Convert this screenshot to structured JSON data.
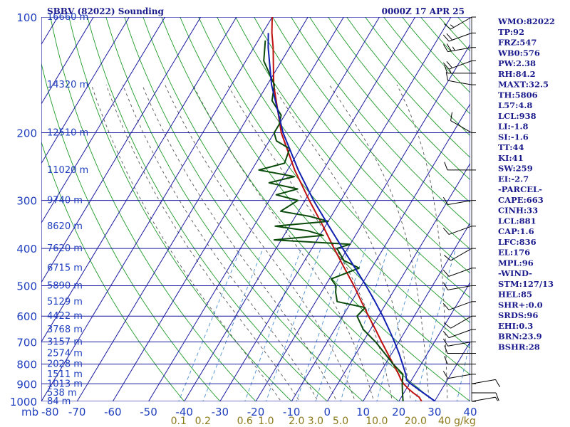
{
  "header": {
    "title": "SBBV (82022) Sounding",
    "time": "0000Z 17 APR 25"
  },
  "colors": {
    "grid": "#1a1aa0",
    "dry_adiabat": "#1f9a2a",
    "moist_adiabat": "#555555",
    "mixing_ratio": "#4a8fd0",
    "temperature": "#c01010",
    "dewpoint": "#0a4a0a",
    "parcel": "#1020b0",
    "labels": "#1f3fbf",
    "mixing_label": "#8c7a1a"
  },
  "chart_data": {
    "type": "line",
    "chart_kind": "skew-T log-P sounding",
    "y_scale": "log",
    "ylim": [
      1000,
      100
    ],
    "xlim": [
      -80,
      40
    ],
    "y_ticks": [
      100,
      200,
      300,
      400,
      500,
      600,
      700,
      800,
      900,
      1000
    ],
    "y_unit_label": "mb",
    "x_ticks": [
      -80,
      -70,
      -60,
      -50,
      -40,
      -30,
      -20,
      -10,
      0,
      10,
      20,
      30,
      40
    ],
    "height_labels": [
      {
        "p": 100,
        "text": "16660 m"
      },
      {
        "p": 150,
        "text": "14320 m"
      },
      {
        "p": 200,
        "text": "12510 m"
      },
      {
        "p": 250,
        "text": "11020 m"
      },
      {
        "p": 300,
        "text": "9740 m"
      },
      {
        "p": 350,
        "text": "8620 m"
      },
      {
        "p": 400,
        "text": "7620 m"
      },
      {
        "p": 450,
        "text": "6715 m"
      },
      {
        "p": 500,
        "text": "5890 m"
      },
      {
        "p": 550,
        "text": "5129 m"
      },
      {
        "p": 600,
        "text": "4422 m"
      },
      {
        "p": 650,
        "text": "3768 m"
      },
      {
        "p": 700,
        "text": "3157 m"
      },
      {
        "p": 750,
        "text": "2574 m"
      },
      {
        "p": 800,
        "text": "2028 m"
      },
      {
        "p": 850,
        "text": "1511 m"
      },
      {
        "p": 900,
        "text": "1013 m"
      },
      {
        "p": 950,
        "text": "538 m"
      },
      {
        "p": 1000,
        "text": "84 m"
      }
    ],
    "mixing_ratio_labels": [
      "0.1",
      "0.2",
      "0.6",
      "1.0",
      "2.0",
      "3.0",
      "5.0",
      "10.0",
      "20.0",
      "40 g/kg"
    ],
    "mixing_ratio_values": [
      0.1,
      0.2,
      0.6,
      1.0,
      2.0,
      3.0,
      5.0,
      10.0,
      20.0,
      40.0
    ],
    "series": [
      {
        "key": "temperature",
        "points": [
          [
            1000,
            26.4
          ],
          [
            975,
            25.0
          ],
          [
            950,
            22.6
          ],
          [
            925,
            20.4
          ],
          [
            900,
            18.4
          ],
          [
            875,
            16.8
          ],
          [
            850,
            15.4
          ],
          [
            800,
            12.2
          ],
          [
            750,
            8.8
          ],
          [
            700,
            5.2
          ],
          [
            650,
            1.4
          ],
          [
            600,
            -2.8
          ],
          [
            550,
            -7.2
          ],
          [
            500,
            -12.0
          ],
          [
            450,
            -17.6
          ],
          [
            400,
            -23.8
          ],
          [
            380,
            -26.4
          ],
          [
            350,
            -30.6
          ],
          [
            300,
            -38.8
          ],
          [
            250,
            -48.0
          ],
          [
            200,
            -58.0
          ],
          [
            150,
            -68.2
          ],
          [
            120,
            -74.6
          ],
          [
            110,
            -77.4
          ],
          [
            100,
            -80.0
          ]
        ]
      },
      {
        "key": "dewpoint",
        "points": [
          [
            1000,
            21.2
          ],
          [
            950,
            19.6
          ],
          [
            900,
            18.0
          ],
          [
            850,
            16.6
          ],
          [
            800,
            12.2
          ],
          [
            750,
            8.0
          ],
          [
            700,
            3.5
          ],
          [
            650,
            -2.0
          ],
          [
            600,
            -6.0
          ],
          [
            570,
            -5.2
          ],
          [
            550,
            -14.0
          ],
          [
            520,
            -16.0
          ],
          [
            500,
            -17.0
          ],
          [
            480,
            -19.5
          ],
          [
            450,
            -13.5
          ],
          [
            430,
            -19.0
          ],
          [
            400,
            -23.0
          ],
          [
            390,
            -20.0
          ],
          [
            380,
            -42.0
          ],
          [
            370,
            -29.0
          ],
          [
            360,
            -34.0
          ],
          [
            350,
            -44.0
          ],
          [
            340,
            -30.0
          ],
          [
            330,
            -36.0
          ],
          [
            320,
            -45.0
          ],
          [
            300,
            -42.0
          ],
          [
            290,
            -49.0
          ],
          [
            280,
            -44.0
          ],
          [
            270,
            -53.0
          ],
          [
            260,
            -47.0
          ],
          [
            250,
            -58.0
          ],
          [
            240,
            -52.0
          ],
          [
            220,
            -53.0
          ],
          [
            210,
            -58.0
          ],
          [
            200,
            -60.0
          ],
          [
            190,
            -60.0
          ],
          [
            180,
            -61.0
          ],
          [
            165,
            -66.0
          ],
          [
            150,
            -68.0
          ],
          [
            130,
            -75.0
          ],
          [
            115,
            -78.0
          ]
        ]
      },
      {
        "key": "parcel",
        "points": [
          [
            1000,
            30.2
          ],
          [
            950,
            25.4
          ],
          [
            900,
            20.4
          ],
          [
            880,
            18.6
          ],
          [
            860,
            17.8
          ],
          [
            850,
            17.4
          ],
          [
            800,
            14.8
          ],
          [
            750,
            12.0
          ],
          [
            700,
            8.8
          ],
          [
            650,
            5.2
          ],
          [
            600,
            1.2
          ],
          [
            550,
            -3.4
          ],
          [
            500,
            -8.6
          ],
          [
            450,
            -14.6
          ],
          [
            400,
            -21.4
          ],
          [
            350,
            -29.0
          ],
          [
            300,
            -37.6
          ],
          [
            250,
            -47.0
          ],
          [
            200,
            -57.5
          ],
          [
            150,
            -68.8
          ],
          [
            120,
            -76.0
          ],
          [
            110,
            -78.4
          ]
        ]
      }
    ]
  },
  "indices": [
    "WMO:82022",
    "TP:92",
    "FRZ:547",
    "WB0:576",
    "PW:2.38",
    "RH:84.2",
    "MAXT:32.5",
    "TH:5806",
    "L57:4.8",
    "LCL:938",
    "LI:-1.8",
    "SI:-1.6",
    "TT:44",
    "KI:41",
    "SW:259",
    "EI:-2.7",
    "-PARCEL-",
    "CAPE:663",
    "CINH:33",
    "LCL:881",
    "CAP:1.6",
    "LFC:836",
    "EL:176",
    "MPL:96",
    "-WIND-",
    "STM:127/13",
    "HEL:85",
    "SHR+:0.0",
    "SRDS:96",
    "EHI:0.3",
    "BRN:23.9",
    "BSHR:28"
  ],
  "wind_barbs": [
    {
      "p": 100,
      "dir": 240,
      "spd": 15
    },
    {
      "p": 110,
      "dir": 250,
      "spd": 20
    },
    {
      "p": 120,
      "dir": 260,
      "spd": 25
    },
    {
      "p": 130,
      "dir": 250,
      "spd": 20
    },
    {
      "p": 140,
      "dir": 270,
      "spd": 15
    },
    {
      "p": 150,
      "dir": 280,
      "spd": 10
    },
    {
      "p": 200,
      "dir": 300,
      "spd": 10
    },
    {
      "p": 250,
      "dir": 270,
      "spd": 10
    },
    {
      "p": 300,
      "dir": 260,
      "spd": 10
    },
    {
      "p": 350,
      "dir": 250,
      "spd": 10
    },
    {
      "p": 400,
      "dir": 240,
      "spd": 10
    },
    {
      "p": 450,
      "dir": 250,
      "spd": 10
    },
    {
      "p": 500,
      "dir": 260,
      "spd": 10
    },
    {
      "p": 550,
      "dir": 250,
      "spd": 10
    },
    {
      "p": 600,
      "dir": 240,
      "spd": 10
    },
    {
      "p": 650,
      "dir": 250,
      "spd": 10
    },
    {
      "p": 700,
      "dir": 260,
      "spd": 10
    },
    {
      "p": 750,
      "dir": 270,
      "spd": 10
    },
    {
      "p": 800,
      "dir": 270,
      "spd": 10
    },
    {
      "p": 850,
      "dir": 260,
      "spd": 10
    },
    {
      "p": 900,
      "dir": 80,
      "spd": 10
    },
    {
      "p": 950,
      "dir": 90,
      "spd": 10
    },
    {
      "p": 1000,
      "dir": 80,
      "spd": 5
    }
  ]
}
